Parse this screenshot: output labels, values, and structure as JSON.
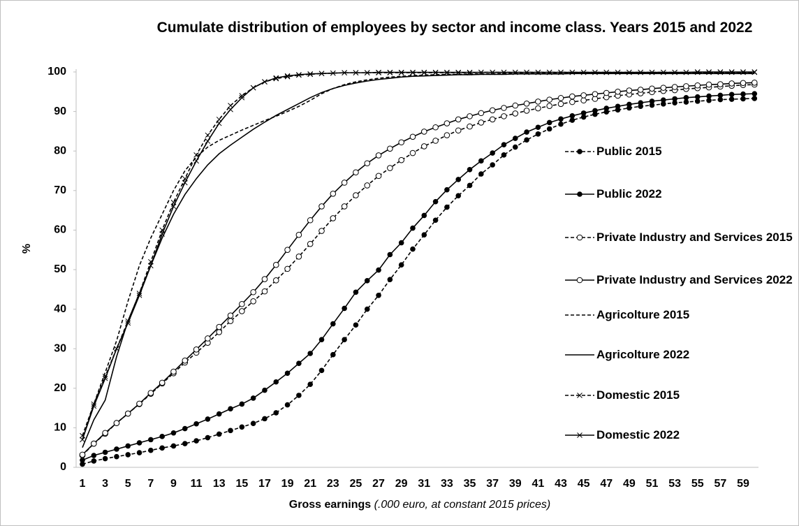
{
  "chart_data": {
    "type": "line",
    "title": "Cumulate distribution of employees by sector and income class. Years 2015 and 2022",
    "x_label": "Gross earnings",
    "x_label_note": "(.000 euro, at constant 2015 prices)",
    "y_label": "%",
    "categories": [
      1,
      null,
      3,
      null,
      5,
      null,
      7,
      null,
      9,
      null,
      11,
      null,
      13,
      null,
      15,
      null,
      17,
      null,
      19,
      null,
      21,
      null,
      23,
      null,
      25,
      null,
      27,
      null,
      29,
      null,
      31,
      null,
      33,
      null,
      35,
      null,
      37,
      null,
      39,
      null,
      41,
      null,
      43,
      null,
      45,
      null,
      47,
      null,
      49,
      null,
      51,
      null,
      53,
      null,
      55,
      null,
      57,
      null,
      59,
      null
    ],
    "ylim": [
      0,
      100
    ],
    "yticks": [
      0,
      10,
      20,
      30,
      40,
      50,
      60,
      70,
      80,
      90,
      100
    ],
    "grid": false,
    "legend": "right",
    "series": [
      {
        "name": "Public 2015",
        "color": "#000000",
        "dash": true,
        "marker": "filled",
        "values": [
          0.8,
          1.6,
          2.2,
          2.7,
          3.2,
          3.7,
          4.3,
          4.9,
          5.4,
          6.0,
          6.7,
          7.5,
          8.4,
          9.3,
          10.2,
          11.1,
          12.3,
          13.8,
          15.8,
          18.2,
          21.0,
          24.5,
          28.5,
          32.3,
          36.0,
          40.0,
          43.5,
          47.5,
          51.2,
          55.2,
          58.8,
          62.5,
          65.8,
          68.7,
          71.3,
          74.2,
          76.5,
          79.0,
          81.0,
          82.8,
          84.3,
          85.6,
          86.8,
          87.8,
          88.6,
          89.3,
          89.9,
          90.4,
          90.9,
          91.3,
          91.6,
          91.9,
          92.2,
          92.4,
          92.6,
          92.8,
          93.0,
          93.1,
          93.2,
          93.3
        ]
      },
      {
        "name": "Public 2022",
        "color": "#000000",
        "dash": false,
        "marker": "filled",
        "values": [
          1.8,
          3.0,
          3.8,
          4.6,
          5.4,
          6.2,
          7.0,
          7.8,
          8.7,
          9.8,
          11.0,
          12.2,
          13.5,
          14.8,
          16.0,
          17.5,
          19.5,
          21.6,
          23.8,
          26.3,
          28.8,
          32.3,
          36.3,
          40.2,
          44.3,
          47.2,
          49.9,
          53.8,
          56.8,
          60.5,
          63.7,
          67.2,
          70.2,
          72.8,
          75.3,
          77.5,
          79.5,
          81.6,
          83.2,
          84.8,
          86.0,
          87.2,
          88.1,
          88.9,
          89.6,
          90.2,
          90.8,
          91.3,
          91.8,
          92.2,
          92.6,
          92.9,
          93.2,
          93.5,
          93.7,
          93.9,
          94.1,
          94.3,
          94.4,
          94.5
        ]
      },
      {
        "name": "Private Industry and Services 2015",
        "color": "#000000",
        "dash": true,
        "marker": "open",
        "values": [
          3.0,
          6.0,
          8.5,
          11.2,
          13.6,
          16.0,
          18.6,
          21.2,
          23.8,
          26.5,
          29.0,
          31.5,
          34.2,
          37.0,
          39.5,
          42.0,
          44.5,
          47.3,
          50.2,
          53.3,
          56.5,
          59.8,
          63.0,
          66.0,
          68.8,
          71.3,
          73.7,
          75.7,
          77.7,
          79.5,
          81.2,
          82.6,
          84.0,
          85.2,
          86.2,
          87.2,
          88.0,
          88.8,
          89.5,
          90.2,
          90.8,
          91.4,
          91.9,
          92.4,
          92.8,
          93.2,
          93.6,
          94.0,
          94.3,
          94.6,
          94.9,
          95.2,
          95.4,
          95.7,
          95.9,
          96.1,
          96.3,
          96.5,
          96.7,
          96.8
        ]
      },
      {
        "name": "Private Industry and Services 2022",
        "color": "#000000",
        "dash": false,
        "marker": "open",
        "values": [
          3.2,
          6.0,
          8.7,
          11.2,
          13.6,
          16.1,
          18.8,
          21.4,
          24.2,
          27.0,
          29.8,
          32.6,
          35.5,
          38.4,
          41.3,
          44.3,
          47.6,
          51.2,
          55.0,
          58.8,
          62.5,
          66.0,
          69.2,
          72.0,
          74.6,
          76.9,
          78.9,
          80.6,
          82.2,
          83.6,
          84.9,
          86.0,
          87.0,
          88.0,
          88.8,
          89.6,
          90.3,
          90.9,
          91.5,
          92.0,
          92.5,
          93.0,
          93.4,
          93.8,
          94.1,
          94.4,
          94.7,
          95.0,
          95.3,
          95.5,
          95.8,
          96.0,
          96.2,
          96.4,
          96.6,
          96.8,
          96.9,
          97.1,
          97.2,
          97.3
        ]
      },
      {
        "name": "Agricolture 2015",
        "color": "#000000",
        "dash": true,
        "marker": "none",
        "values": [
          7,
          16,
          24,
          32,
          42,
          51,
          58,
          64,
          70,
          75,
          78.5,
          81,
          82.7,
          84,
          85.3,
          86.5,
          87.7,
          88.8,
          90,
          91.3,
          92.8,
          94.5,
          95.8,
          96.8,
          97.5,
          98,
          98.4,
          98.7,
          98.9,
          99.1,
          99.2,
          99.3,
          99.4,
          99.4,
          99.5,
          99.5,
          99.5,
          99.6,
          99.6,
          99.6,
          99.6,
          99.7,
          99.7,
          99.7,
          99.7,
          99.7,
          99.7,
          99.8,
          99.8,
          99.8,
          99.8,
          99.8,
          99.8,
          99.8,
          99.8,
          99.8,
          99.8,
          99.8,
          99.8,
          99.8
        ]
      },
      {
        "name": "Agricolture 2022",
        "color": "#000000",
        "dash": false,
        "marker": "none",
        "values": [
          5,
          12,
          17,
          28,
          37,
          44,
          51,
          58,
          64,
          69,
          73,
          76.5,
          79.3,
          81.5,
          83.5,
          85.5,
          87.3,
          89,
          90.5,
          92,
          93.5,
          94.8,
          95.8,
          96.6,
          97.2,
          97.7,
          98.1,
          98.4,
          98.7,
          98.9,
          99.0,
          99.1,
          99.2,
          99.3,
          99.3,
          99.4,
          99.4,
          99.4,
          99.5,
          99.5,
          99.5,
          99.5,
          99.5,
          99.6,
          99.6,
          99.6,
          99.6,
          99.6,
          99.6,
          99.6,
          99.6,
          99.6,
          99.6,
          99.6,
          99.6,
          99.6,
          99.6,
          99.6,
          99.6,
          99.6
        ]
      },
      {
        "name": "Domestic 2015",
        "color": "#000000",
        "dash": true,
        "marker": "x",
        "values": [
          8,
          16,
          23,
          30,
          37,
          44,
          52,
          60,
          67,
          73,
          79,
          84,
          88,
          91.5,
          94,
          96,
          97.5,
          98.3,
          98.8,
          99.2,
          99.4,
          99.6,
          99.7,
          99.8,
          99.8,
          99.8,
          99.8,
          99.8,
          99.8,
          99.8,
          99.8,
          99.8,
          99.8,
          99.8,
          99.8,
          99.9,
          99.9,
          99.9,
          99.9,
          99.9,
          99.9,
          99.9,
          99.9,
          99.9,
          99.9,
          99.9,
          99.9,
          99.9,
          99.9,
          99.9,
          99.9,
          99.9,
          99.9,
          99.9,
          99.9,
          99.9,
          99.9,
          99.9,
          99.9,
          99.9
        ]
      },
      {
        "name": "Domestic 2022",
        "color": "#000000",
        "dash": false,
        "marker": "x",
        "values": [
          7,
          15.5,
          22.5,
          30,
          36.5,
          43.5,
          51,
          59,
          66,
          72,
          77.5,
          82.5,
          87,
          90.5,
          93.5,
          96,
          97.5,
          98.5,
          99,
          99.3,
          99.5,
          99.6,
          99.7,
          99.8,
          99.8,
          99.8,
          99.9,
          99.9,
          99.9,
          99.9,
          99.9,
          99.9,
          99.9,
          99.9,
          99.9,
          99.9,
          99.9,
          99.9,
          99.9,
          99.9,
          99.9,
          99.9,
          99.9,
          99.9,
          99.9,
          99.9,
          99.9,
          99.9,
          99.9,
          99.9,
          99.9,
          99.9,
          99.9,
          99.9,
          100,
          100,
          100,
          100,
          100,
          100
        ]
      }
    ]
  }
}
